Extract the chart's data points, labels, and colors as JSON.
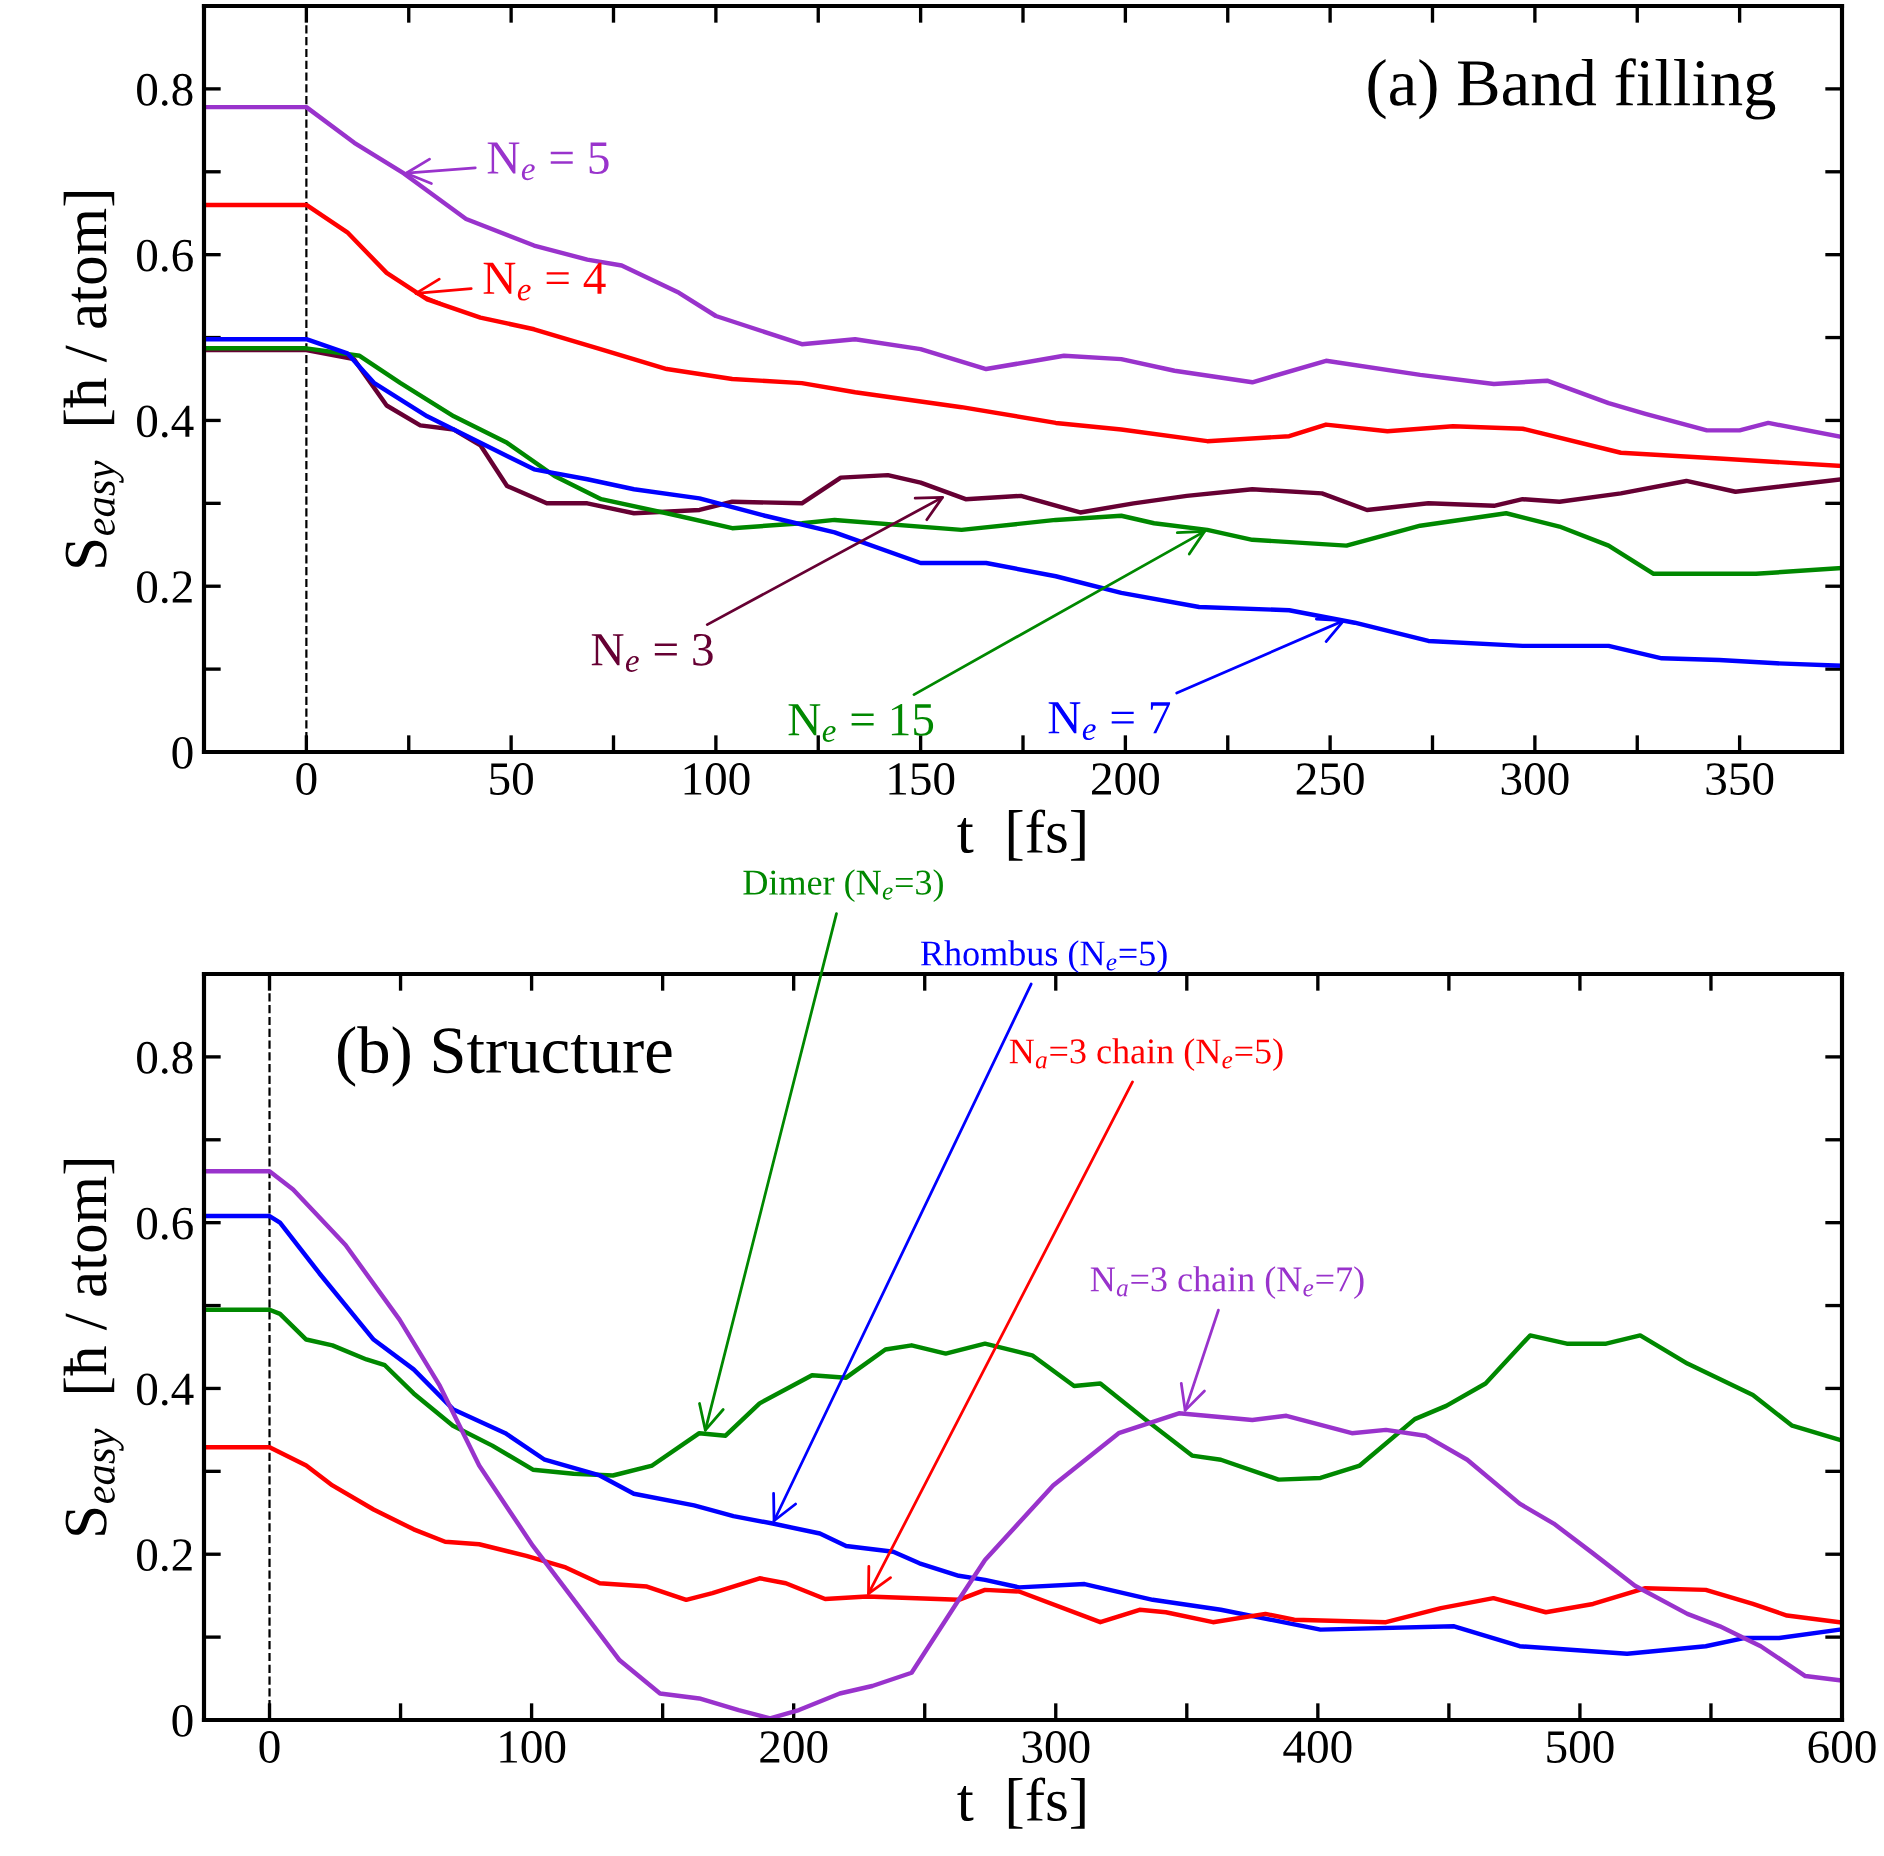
{
  "chart_data": [
    {
      "type": "line",
      "title": "(a) Band filling",
      "xlabel": "t  [fs]",
      "ylabel": "S$_{easy}$  [ħ / atom]",
      "xlim": [
        -25,
        375
      ],
      "ylim": [
        0,
        0.9
      ],
      "xticks": [
        0,
        {
          "value": 25,
          "label": null
        },
        50,
        {
          "value": 75,
          "label": null
        },
        100,
        {
          "value": 125,
          "label": null
        },
        150,
        {
          "value": 175,
          "label": null
        },
        200,
        {
          "value": 225,
          "label": null
        },
        250,
        {
          "value": 275,
          "label": null
        },
        300,
        {
          "value": 325,
          "label": null
        },
        350
      ],
      "yticks": [
        0,
        {
          "value": 0.1,
          "label": null
        },
        0.2,
        {
          "value": 0.3,
          "label": null
        },
        0.4,
        {
          "value": 0.5,
          "label": null
        },
        0.6,
        {
          "value": 0.7,
          "label": null
        },
        0.8
      ],
      "grid": false,
      "legend": false,
      "marker": "none",
      "line_style": "solid",
      "ref_lines": [
        {
          "axis": "x",
          "value": 0,
          "color": "#000000",
          "line_style": "dashed"
        }
      ],
      "series": [
        {
          "color": "#9933cc",
          "x": [
            -25,
            0,
            11.7,
            23.8,
            39,
            55.6,
            68.6,
            77,
            91,
            100,
            121,
            134,
            150,
            166,
            185,
            199,
            212,
            231,
            249,
            272,
            290,
            303,
            318,
            327,
            342,
            350,
            357,
            375
          ],
          "values": [
            0.778,
            0.778,
            0.735,
            0.698,
            0.643,
            0.611,
            0.594,
            0.587,
            0.554,
            0.526,
            0.492,
            0.498,
            0.486,
            0.462,
            0.478,
            0.474,
            0.46,
            0.446,
            0.472,
            0.455,
            0.444,
            0.448,
            0.421,
            0.408,
            0.388,
            0.388,
            0.397,
            0.38
          ]
        },
        {
          "color": "#ff0000",
          "x": [
            -25,
            0,
            10,
            19.6,
            29.5,
            42.5,
            55.6,
            71.8,
            88,
            104,
            121,
            134,
            160,
            183,
            199,
            220,
            240,
            249,
            264,
            280,
            297,
            321,
            345,
            375
          ],
          "values": [
            0.66,
            0.66,
            0.627,
            0.578,
            0.546,
            0.524,
            0.51,
            0.486,
            0.462,
            0.45,
            0.445,
            0.434,
            0.416,
            0.397,
            0.389,
            0.375,
            0.381,
            0.395,
            0.387,
            0.393,
            0.39,
            0.361,
            0.354,
            0.345
          ]
        },
        {
          "color": "#660033",
          "x": [
            -25,
            0,
            11.6,
            19.6,
            27.8,
            36,
            42.5,
            49,
            58.7,
            68.6,
            80,
            96,
            104,
            121,
            130.5,
            142,
            150,
            161,
            174.5,
            189,
            202,
            215,
            231,
            248,
            259,
            274,
            290,
            297,
            306,
            321,
            337,
            349,
            375
          ],
          "values": [
            0.485,
            0.485,
            0.474,
            0.418,
            0.394,
            0.389,
            0.37,
            0.321,
            0.3,
            0.3,
            0.288,
            0.292,
            0.302,
            0.3,
            0.331,
            0.334,
            0.325,
            0.305,
            0.309,
            0.289,
            0.3,
            0.309,
            0.317,
            0.312,
            0.292,
            0.3,
            0.297,
            0.305,
            0.302,
            0.312,
            0.327,
            0.314,
            0.329
          ]
        },
        {
          "color": "#008800",
          "x": [
            -25,
            0,
            13,
            23,
            36,
            49,
            60.6,
            72,
            88,
            104,
            121,
            129,
            160,
            183,
            199,
            207,
            220,
            231,
            254,
            272,
            293,
            306,
            318,
            329,
            342,
            354,
            375
          ],
          "values": [
            0.487,
            0.487,
            0.478,
            0.445,
            0.405,
            0.373,
            0.333,
            0.305,
            0.288,
            0.27,
            0.276,
            0.28,
            0.268,
            0.28,
            0.285,
            0.276,
            0.268,
            0.256,
            0.249,
            0.273,
            0.288,
            0.272,
            0.249,
            0.215,
            0.215,
            0.215,
            0.222
          ]
        },
        {
          "color": "#0000ff",
          "x": [
            -25,
            0,
            10,
            16.6,
            29.5,
            42.5,
            55.6,
            68.6,
            80,
            96,
            112,
            129,
            150,
            166,
            183,
            199,
            218,
            240,
            256,
            274,
            297,
            318,
            331,
            345,
            359,
            375
          ],
          "values": [
            0.498,
            0.498,
            0.481,
            0.445,
            0.405,
            0.373,
            0.341,
            0.329,
            0.317,
            0.306,
            0.285,
            0.265,
            0.228,
            0.228,
            0.212,
            0.192,
            0.175,
            0.171,
            0.156,
            0.134,
            0.128,
            0.128,
            0.113,
            0.111,
            0.107,
            0.104
          ]
        }
      ],
      "annotations": [
        {
          "text": "N$_{e}$ = 5",
          "x": 23.6,
          "y": 0.698
        },
        {
          "text": "N$_{e}$ = 4",
          "x": 26,
          "y": 0.553
        },
        {
          "text": "N$_{e}$ = 3",
          "x": 156,
          "y": 0.309
        },
        {
          "text": "N$_{e}$ = 15",
          "x": 220,
          "y": 0.268
        },
        {
          "text": "N$_{e}$ = 7",
          "x": 254,
          "y": 0.16
        }
      ]
    },
    {
      "type": "line",
      "title": "(b) Structure",
      "xlabel": "t  [fs]",
      "ylabel": "S$_{easy}$  [ħ / atom]",
      "xlim": [
        -25,
        600
      ],
      "ylim": [
        0,
        0.9
      ],
      "xticks": [
        0,
        {
          "value": 50,
          "label": null
        },
        100,
        {
          "value": 150,
          "label": null
        },
        200,
        {
          "value": 250,
          "label": null
        },
        300,
        {
          "value": 350,
          "label": null
        },
        400,
        {
          "value": 450,
          "label": null
        },
        500,
        {
          "value": 550,
          "label": null
        },
        600
      ],
      "yticks": [
        0,
        {
          "value": 0.1,
          "label": null
        },
        0.2,
        {
          "value": 0.3,
          "label": null
        },
        0.4,
        {
          "value": 0.5,
          "label": null
        },
        0.6,
        {
          "value": 0.7,
          "label": null
        },
        0.8
      ],
      "grid": false,
      "legend": false,
      "marker": "none",
      "line_style": "solid",
      "ref_lines": [
        {
          "axis": "x",
          "value": 0,
          "color": "#000000",
          "line_style": "dashed"
        }
      ],
      "series": [
        {
          "color": "#008800",
          "x": [
            -25,
            0,
            4,
            14,
            24,
            37,
            44,
            55,
            70,
            85,
            100.5,
            116,
            131,
            146,
            164,
            174,
            187,
            207,
            220,
            235,
            245,
            258,
            273,
            291,
            307,
            317,
            334,
            352,
            363,
            385,
            401,
            416,
            437,
            449,
            464,
            481,
            495,
            510,
            523,
            541,
            566,
            581,
            599
          ],
          "values": [
            0.495,
            0.495,
            0.49,
            0.459,
            0.452,
            0.435,
            0.428,
            0.394,
            0.355,
            0.331,
            0.302,
            0.297,
            0.295,
            0.307,
            0.346,
            0.343,
            0.382,
            0.416,
            0.413,
            0.447,
            0.452,
            0.442,
            0.454,
            0.44,
            0.403,
            0.406,
            0.363,
            0.319,
            0.314,
            0.29,
            0.292,
            0.307,
            0.363,
            0.379,
            0.406,
            0.464,
            0.454,
            0.454,
            0.464,
            0.43,
            0.392,
            0.355,
            0.338
          ]
        },
        {
          "color": "#0000ff",
          "x": [
            -25,
            0,
            4,
            19,
            39.7,
            55,
            70,
            90,
            105,
            126,
            139,
            162,
            177,
            192,
            210,
            220,
            238,
            248,
            263,
            273,
            286,
            311,
            337,
            363,
            401,
            452,
            477,
            518,
            548,
            563,
            576,
            599
          ],
          "values": [
            0.608,
            0.608,
            0.6,
            0.539,
            0.459,
            0.423,
            0.375,
            0.346,
            0.314,
            0.295,
            0.273,
            0.259,
            0.246,
            0.237,
            0.225,
            0.21,
            0.203,
            0.189,
            0.174,
            0.169,
            0.16,
            0.164,
            0.145,
            0.133,
            0.109,
            0.113,
            0.089,
            0.08,
            0.089,
            0.099,
            0.099,
            0.109
          ]
        },
        {
          "color": "#ff0000",
          "x": [
            -25,
            0,
            14,
            24,
            39.7,
            55,
            67,
            80,
            98,
            113,
            126,
            144,
            159,
            169,
            187,
            197,
            212,
            228,
            263,
            273,
            286,
            317,
            332,
            342,
            360,
            380,
            391,
            426,
            447,
            467,
            487,
            505,
            525,
            548,
            566,
            579,
            599
          ],
          "values": [
            0.329,
            0.329,
            0.307,
            0.283,
            0.254,
            0.23,
            0.215,
            0.212,
            0.198,
            0.184,
            0.165,
            0.161,
            0.145,
            0.153,
            0.171,
            0.165,
            0.146,
            0.149,
            0.145,
            0.157,
            0.155,
            0.118,
            0.133,
            0.13,
            0.118,
            0.128,
            0.121,
            0.118,
            0.135,
            0.147,
            0.13,
            0.14,
            0.159,
            0.157,
            0.14,
            0.126,
            0.118
          ]
        },
        {
          "color": "#9933cc",
          "x": [
            -25,
            0,
            9,
            29,
            49.6,
            65,
            80,
            100.5,
            118,
            133.6,
            149,
            164,
            179,
            191,
            202,
            217.6,
            230,
            245,
            263,
            273,
            299,
            324,
            347,
            375,
            388,
            413,
            426,
            441,
            457,
            477,
            490,
            505,
            521,
            541,
            553.4,
            569,
            586,
            599
          ],
          "values": [
            0.662,
            0.662,
            0.64,
            0.573,
            0.483,
            0.403,
            0.307,
            0.21,
            0.137,
            0.072,
            0.032,
            0.026,
            0.012,
            0.002,
            0.012,
            0.032,
            0.041,
            0.057,
            0.145,
            0.193,
            0.283,
            0.346,
            0.37,
            0.362,
            0.367,
            0.346,
            0.35,
            0.343,
            0.314,
            0.261,
            0.237,
            0.201,
            0.162,
            0.128,
            0.113,
            0.089,
            0.053,
            0.048
          ]
        }
      ],
      "annotations": [
        {
          "text": "Dimer (N$_{e}$=3)",
          "x": 166,
          "y": 0.346
        },
        {
          "text": "Rhombus (N$_{e}$=5)",
          "x": 192,
          "y": 0.237
        },
        {
          "text": "N$_{a}$=3 chain (N$_{e}$=5)",
          "x": 228,
          "y": 0.149
        },
        {
          "text": "N$_{a}$=3 chain (N$_{e}$=7)",
          "x": 349,
          "y": 0.37
        }
      ]
    }
  ]
}
